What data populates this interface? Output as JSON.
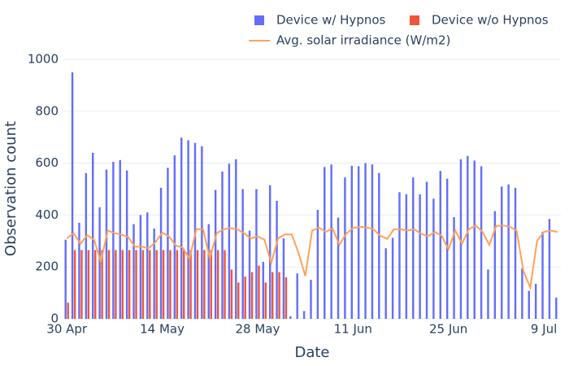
{
  "chart_data": {
    "type": "bar_line",
    "x_label": "Date",
    "y_label": "Observation count",
    "x": [
      "30 Apr",
      "1 May",
      "2 May",
      "3 May",
      "4 May",
      "5 May",
      "6 May",
      "7 May",
      "8 May",
      "9 May",
      "10 May",
      "11 May",
      "12 May",
      "13 May",
      "14 May",
      "15 May",
      "16 May",
      "17 May",
      "18 May",
      "19 May",
      "20 May",
      "21 May",
      "22 May",
      "23 May",
      "24 May",
      "25 May",
      "26 May",
      "27 May",
      "28 May",
      "29 May",
      "30 May",
      "31 May",
      "1 Jun",
      "2 Jun",
      "3 Jun",
      "4 Jun",
      "5 Jun",
      "6 Jun",
      "7 Jun",
      "8 Jun",
      "9 Jun",
      "10 Jun",
      "11 Jun",
      "12 Jun",
      "13 Jun",
      "14 Jun",
      "15 Jun",
      "16 Jun",
      "17 Jun",
      "18 Jun",
      "19 Jun",
      "20 Jun",
      "21 Jun",
      "22 Jun",
      "23 Jun",
      "24 Jun",
      "25 Jun",
      "26 Jun",
      "27 Jun",
      "28 Jun",
      "29 Jun",
      "30 Jun",
      "1 Jul",
      "2 Jul",
      "3 Jul",
      "4 Jul",
      "5 Jul",
      "6 Jul",
      "7 Jul",
      "8 Jul",
      "9 Jul",
      "10 Jul",
      "11 Jul"
    ],
    "xticks": [
      "30 Apr",
      "14 May",
      "28 May",
      "11 Jun",
      "25 Jun",
      "9 Jul"
    ],
    "ylim": [
      0,
      1000
    ],
    "yticks": [
      0,
      200,
      400,
      600,
      800,
      1000
    ],
    "grid": true,
    "series": [
      {
        "name": "Device w/ Hypnos",
        "kind": "bar",
        "color": "#636efa",
        "values": [
          305,
          950,
          370,
          562,
          640,
          430,
          575,
          605,
          612,
          572,
          365,
          400,
          410,
          348,
          505,
          582,
          630,
          698,
          688,
          678,
          665,
          365,
          497,
          568,
          598,
          615,
          500,
          340,
          500,
          220,
          515,
          455,
          310,
          10,
          175,
          30,
          150,
          420,
          585,
          595,
          390,
          545,
          590,
          588,
          600,
          595,
          562,
          272,
          312,
          488,
          480,
          545,
          480,
          528,
          463,
          570,
          540,
          392,
          615,
          628,
          610,
          588,
          190,
          415,
          510,
          518,
          505,
          195,
          108,
          135,
          335,
          385,
          82
        ]
      },
      {
        "name": "Device w/o Hypnos",
        "kind": "bar",
        "color": "#ef553b",
        "values": [
          62,
          265,
          265,
          265,
          265,
          265,
          265,
          265,
          265,
          265,
          265,
          265,
          265,
          265,
          265,
          265,
          265,
          265,
          265,
          265,
          265,
          265,
          265,
          265,
          190,
          140,
          163,
          180,
          205,
          140,
          180,
          180,
          160,
          null,
          null,
          null,
          null,
          null,
          null,
          null,
          null,
          null,
          null,
          null,
          null,
          null,
          null,
          null,
          null,
          null,
          null,
          null,
          null,
          null,
          null,
          null,
          null,
          null,
          null,
          null,
          null,
          null,
          null,
          null,
          null,
          null,
          null,
          null,
          null,
          null,
          null,
          null,
          null
        ]
      },
      {
        "name": "Avg. solar irradiance (W/m2)",
        "kind": "line",
        "color": "#ffa15a",
        "values": [
          310,
          330,
          290,
          322,
          305,
          220,
          340,
          330,
          325,
          315,
          278,
          278,
          272,
          295,
          332,
          318,
          282,
          275,
          232,
          345,
          345,
          232,
          330,
          345,
          350,
          345,
          330,
          310,
          318,
          305,
          215,
          310,
          325,
          325,
          255,
          165,
          340,
          352,
          335,
          348,
          285,
          328,
          350,
          355,
          352,
          345,
          320,
          308,
          345,
          345,
          340,
          345,
          328,
          318,
          335,
          320,
          268,
          340,
          290,
          345,
          360,
          335,
          285,
          358,
          360,
          355,
          340,
          185,
          120,
          300,
          335,
          340,
          335
        ]
      }
    ]
  }
}
